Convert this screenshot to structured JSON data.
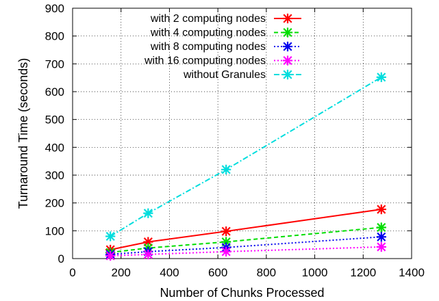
{
  "chart_data": {
    "type": "line",
    "title": "",
    "xlabel": "Number of Chunks Processed",
    "ylabel": "Turnaround Time (seconds)",
    "xlim": [
      0,
      1400
    ],
    "ylim": [
      0,
      900
    ],
    "xticks": [
      0,
      200,
      400,
      600,
      800,
      1000,
      1200,
      1400
    ],
    "yticks": [
      0,
      100,
      200,
      300,
      400,
      500,
      600,
      700,
      800,
      900
    ],
    "grid": true,
    "legend_position": "top-left",
    "series": [
      {
        "name": "with 2 computing nodes",
        "color": "#ff0000",
        "dash": "solid",
        "x": [
          156,
          312,
          634,
          1275
        ],
        "y": [
          32,
          60,
          98,
          177
        ]
      },
      {
        "name": "with 4 computing nodes",
        "color": "#00dd00",
        "dash": "dashed",
        "x": [
          156,
          312,
          634,
          1275
        ],
        "y": [
          22,
          38,
          60,
          112
        ]
      },
      {
        "name": "with 8 computing nodes",
        "color": "#0000ee",
        "dash": "dotted",
        "x": [
          156,
          312,
          634,
          1275
        ],
        "y": [
          15,
          25,
          40,
          78
        ]
      },
      {
        "name": "with 16 computing nodes",
        "color": "#ff00ff",
        "dash": "dotted",
        "x": [
          156,
          312,
          634,
          1275
        ],
        "y": [
          10,
          15,
          25,
          42
        ]
      },
      {
        "name": "without Granules",
        "color": "#00dddd",
        "dash": "dashdot",
        "x": [
          156,
          312,
          634,
          1275
        ],
        "y": [
          80,
          163,
          320,
          652
        ]
      }
    ]
  }
}
